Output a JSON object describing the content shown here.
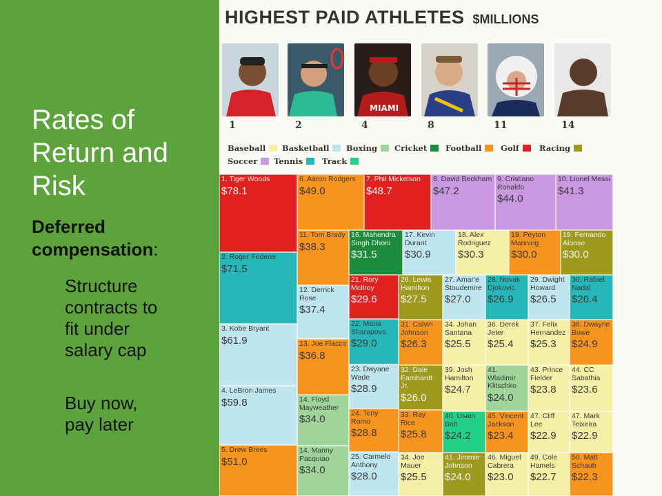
{
  "slide": {
    "title": "Rates of\nReturn and\nRisk",
    "subhead_bold": "Deferred compensation",
    "subhead_tail": ":",
    "bullets": [
      "Structure\ncontracts to\nfit under\nsalary cap",
      "Buy now,\npay later"
    ],
    "background_color": "#5ba33a"
  },
  "infographic": {
    "title": "HIGHEST PAID ATHLETES",
    "unit": "$MILLIONS",
    "photos": [
      {
        "rank": "1",
        "icon": "golfer-photo"
      },
      {
        "rank": "2",
        "icon": "tennis-player-photo"
      },
      {
        "rank": "4",
        "icon": "basketball-player-photo"
      },
      {
        "rank": "8",
        "icon": "soccer-player-photo"
      },
      {
        "rank": "11",
        "icon": "football-player-photo"
      },
      {
        "rank": "14",
        "icon": "boxer-photo"
      }
    ],
    "legend": [
      {
        "label": "Baseball",
        "color": "#f5f0a6"
      },
      {
        "label": "Basketball",
        "color": "#bfe6ee"
      },
      {
        "label": "Boxing",
        "color": "#9fd59a"
      },
      {
        "label": "Cricket",
        "color": "#1c8c3a"
      },
      {
        "label": "Football",
        "color": "#f7941d"
      },
      {
        "label": "Golf",
        "color": "#e0211f"
      },
      {
        "label": "Racing",
        "color": "#9e9a1e"
      },
      {
        "label": "Soccer",
        "color": "#c998e0"
      },
      {
        "label": "Tennis",
        "color": "#26b8b8"
      },
      {
        "label": "Track",
        "color": "#22d088"
      }
    ],
    "athletes": [
      {
        "name": "1. Tiger Woods",
        "value": "$78.1",
        "sport": "Golf"
      },
      {
        "name": "2. Roger Federer",
        "value": "$71.5",
        "sport": "Tennis"
      },
      {
        "name": "3. Kobe Bryant",
        "value": "$61.9",
        "sport": "Basketball"
      },
      {
        "name": "4. LeBron James",
        "value": "$59.8",
        "sport": "Basketball"
      },
      {
        "name": "5. Drew Brees",
        "value": "$51.0",
        "sport": "Football"
      },
      {
        "name": "6. Aaron Rodgers",
        "value": "$49.0",
        "sport": "Football"
      },
      {
        "name": "7. Phil Mickelson",
        "value": "$48.7",
        "sport": "Golf"
      },
      {
        "name": "8. David Beckham",
        "value": "$47.2",
        "sport": "Soccer"
      },
      {
        "name": "9. Cristiano Ronaldo",
        "value": "$44.0",
        "sport": "Soccer"
      },
      {
        "name": "10. Lionel Messi",
        "value": "$41.3",
        "sport": "Soccer"
      },
      {
        "name": "11. Tom Brady",
        "value": "$38.3",
        "sport": "Football"
      },
      {
        "name": "12. Derrick Rose",
        "value": "$37.4",
        "sport": "Basketball"
      },
      {
        "name": "13. Joe Flacco",
        "value": "$36.8",
        "sport": "Football"
      },
      {
        "name": "14. Floyd Mayweather",
        "value": "$34.0",
        "sport": "Boxing"
      },
      {
        "name": "14. Manny Pacquiao",
        "value": "$34.0",
        "sport": "Boxing"
      },
      {
        "name": "16. Mahendra Singh Dhoni",
        "value": "$31.5",
        "sport": "Cricket"
      },
      {
        "name": "17. Kevin Durant",
        "value": "$30.9",
        "sport": "Basketball"
      },
      {
        "name": "18. Alex Rodriguez",
        "value": "$30.3",
        "sport": "Baseball"
      },
      {
        "name": "19. Peyton Manning",
        "value": "$30.0",
        "sport": "Football"
      },
      {
        "name": "19. Fernando Alonso",
        "value": "$30.0",
        "sport": "Racing"
      },
      {
        "name": "21. Rory McIlroy",
        "value": "$29.6",
        "sport": "Golf"
      },
      {
        "name": "22. Maria Sharapova",
        "value": "$29.0",
        "sport": "Tennis"
      },
      {
        "name": "23. Dwyane Wade",
        "value": "$28.9",
        "sport": "Basketball"
      },
      {
        "name": "24. Tony Romo",
        "value": "$28.8",
        "sport": "Football"
      },
      {
        "name": "25. Carmelo Anthony",
        "value": "$28.0",
        "sport": "Basketball"
      },
      {
        "name": "26. Lewis Hamilton",
        "value": "$27.5",
        "sport": "Racing"
      },
      {
        "name": "27. Amar'e Stoudemire",
        "value": "$27.0",
        "sport": "Basketball"
      },
      {
        "name": "28. Novak Djokovic",
        "value": "$26.9",
        "sport": "Tennis"
      },
      {
        "name": "29. Dwight Howard",
        "value": "$26.5",
        "sport": "Basketball"
      },
      {
        "name": "30. Rafael Nadal",
        "value": "$26.4",
        "sport": "Tennis"
      },
      {
        "name": "31. Calvin Johnson",
        "value": "$26.3",
        "sport": "Football"
      },
      {
        "name": "32. Dale Earnhardt Jr.",
        "value": "$26.0",
        "sport": "Racing"
      },
      {
        "name": "33. Ray Rice",
        "value": "$25.8",
        "sport": "Football"
      },
      {
        "name": "34. Johan Santana",
        "value": "$25.5",
        "sport": "Baseball"
      },
      {
        "name": "34. Joe Mauer",
        "value": "$25.5",
        "sport": "Baseball"
      },
      {
        "name": "36. Derek Jeter",
        "value": "$25.4",
        "sport": "Baseball"
      },
      {
        "name": "37. Felix Hernandez",
        "value": "$25.3",
        "sport": "Baseball"
      },
      {
        "name": "38. Dwayne Bowe",
        "value": "$24.9",
        "sport": "Football"
      },
      {
        "name": "39. Josh Hamilton",
        "value": "$24.7",
        "sport": "Baseball"
      },
      {
        "name": "40. Usain Bolt",
        "value": "$24.2",
        "sport": "Track"
      },
      {
        "name": "41. Wladimir Klitschko",
        "value": "$24.0",
        "sport": "Boxing"
      },
      {
        "name": "41. Jimmie Johnson",
        "value": "$24.0",
        "sport": "Racing"
      },
      {
        "name": "43. Prince Fielder",
        "value": "$23.8",
        "sport": "Baseball"
      },
      {
        "name": "44. CC Sabathia",
        "value": "$23.6",
        "sport": "Baseball"
      },
      {
        "name": "45. Vincent Jackson",
        "value": "$23.4",
        "sport": "Football"
      },
      {
        "name": "46. Miguel Cabrera",
        "value": "$23.0",
        "sport": "Baseball"
      },
      {
        "name": "47. Cliff Lee",
        "value": "$22.9",
        "sport": "Baseball"
      },
      {
        "name": "47. Mark Teixeira",
        "value": "$22.9",
        "sport": "Baseball"
      },
      {
        "name": "49. Cole Hamels",
        "value": "$22.7",
        "sport": "Baseball"
      },
      {
        "name": "50. Matt Schaub",
        "value": "$22.3",
        "sport": "Football"
      }
    ]
  }
}
